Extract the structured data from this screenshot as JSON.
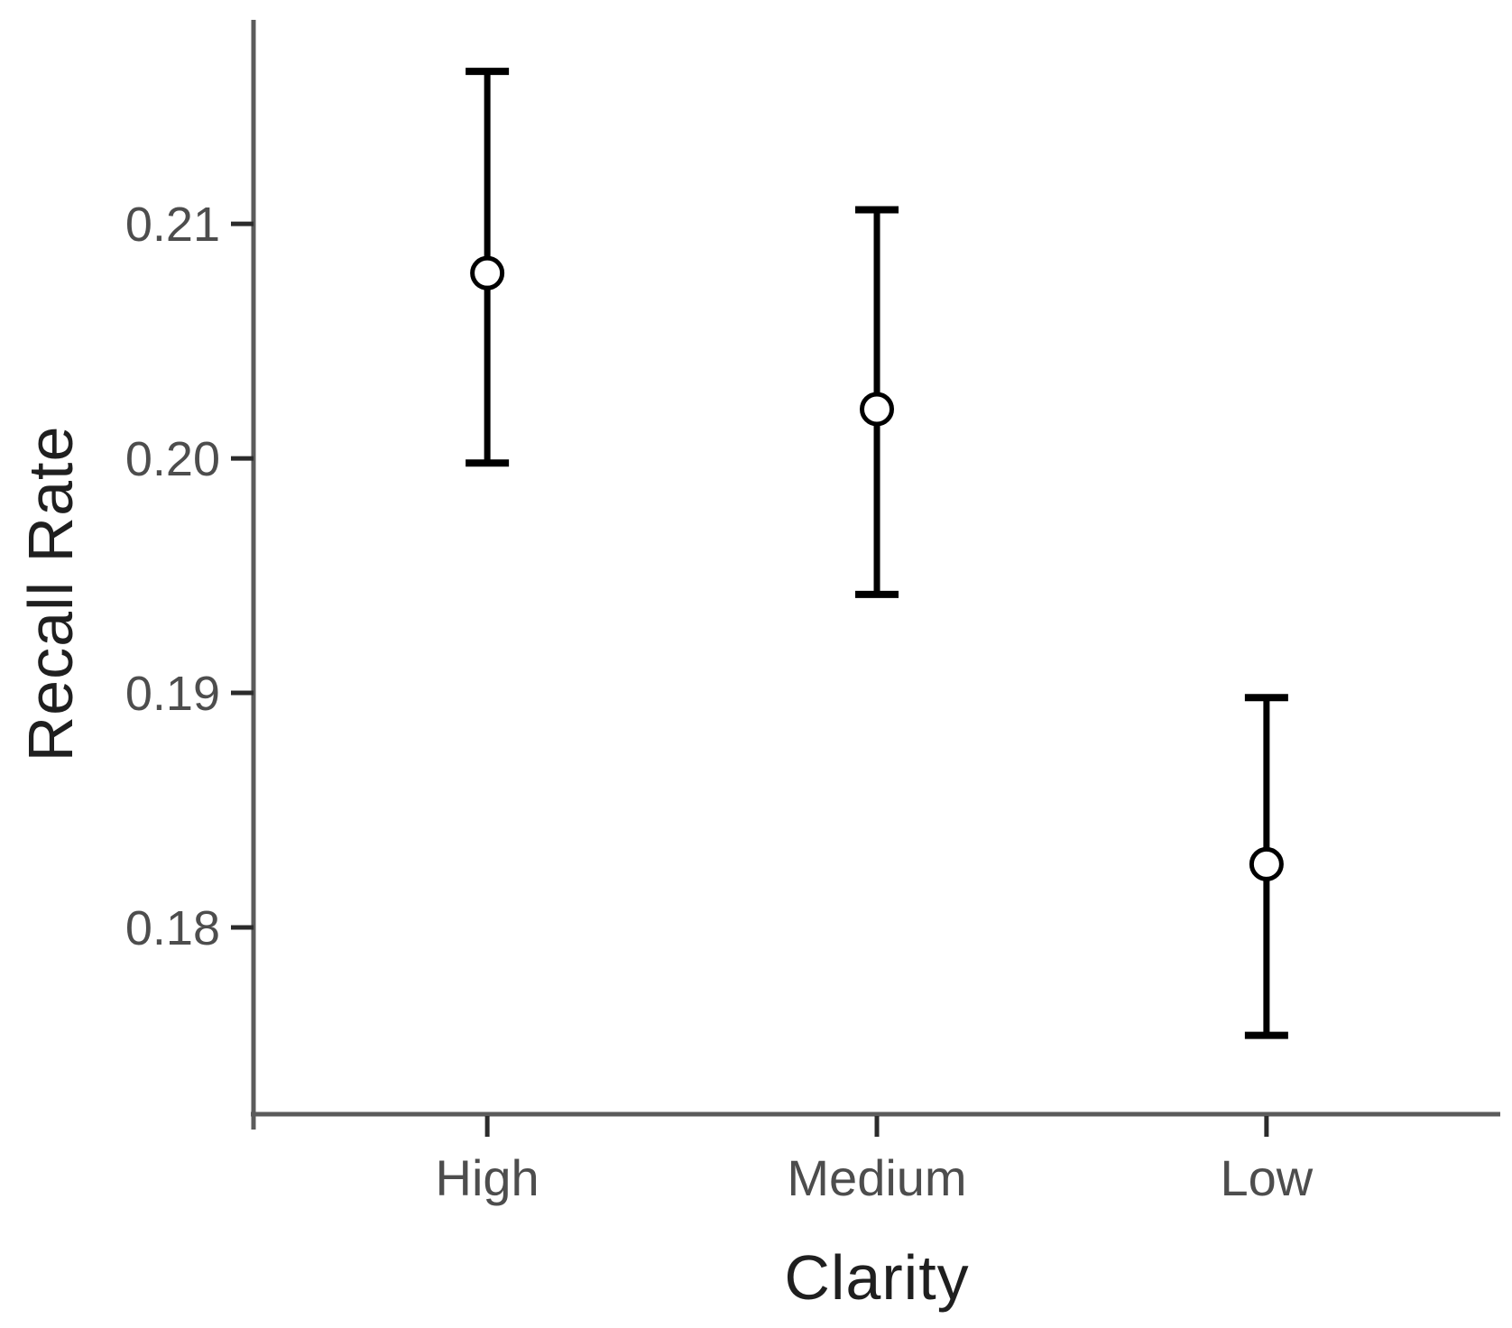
{
  "chart_data": {
    "type": "scatter",
    "subtype": "point-estimates-with-error-bars",
    "title": "",
    "xlabel": "Clarity",
    "ylabel": "Recall Rate",
    "categories": [
      "High",
      "Medium",
      "Low"
    ],
    "series": [
      {
        "name": "Recall Rate",
        "means": [
          0.2079,
          0.2021,
          0.1827
        ],
        "ci_low": [
          0.1998,
          0.1942,
          0.1754
        ],
        "ci_high": [
          0.2165,
          0.2106,
          0.1898
        ]
      }
    ],
    "ytick_labels": [
      "0.21",
      "0.20",
      "0.19",
      "0.18"
    ],
    "ytick_values": [
      0.21,
      0.2,
      0.19,
      0.18
    ],
    "ylim": [
      0.17204,
      0.21858
    ],
    "grid": false,
    "legend": false,
    "marker": "open-circle",
    "colors": {
      "errorbar": "#000000",
      "marker_fill": "#ffffff",
      "marker_stroke": "#000000",
      "axis_line": "#5b5b5b",
      "tick_mark": "#2b2b2b",
      "tick_label": "#4d4d4d",
      "axis_title": "#1f1f1f",
      "background": "#ffffff"
    }
  }
}
